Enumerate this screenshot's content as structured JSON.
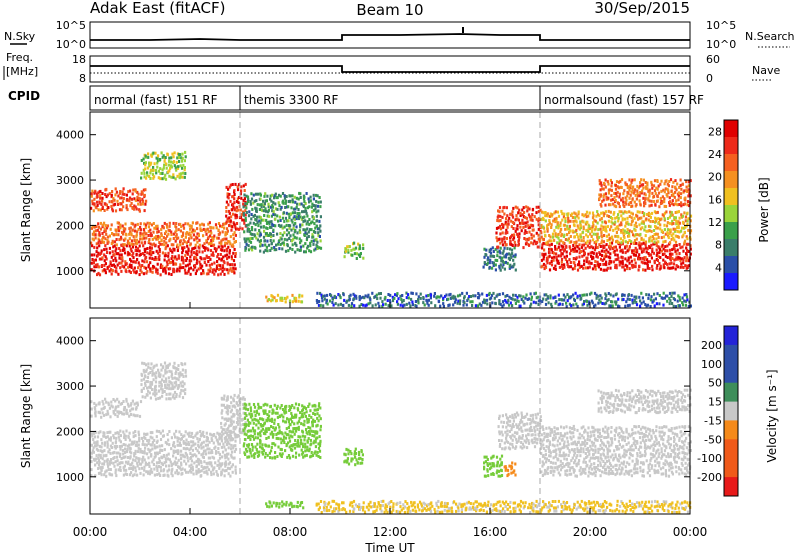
{
  "header": {
    "station": "Adak East (fitACF)",
    "beam": "Beam 10",
    "date": "30/Sep/2015"
  },
  "noise_panel": {
    "left_label": "N.Sky",
    "right_label": "N.Search",
    "left_ticks": [
      "10^5",
      "10^0"
    ],
    "right_ticks": [
      "10^5",
      "10^0"
    ]
  },
  "freq_panel": {
    "left_label_line1": "Freq.",
    "left_label_line2": "[MHz]",
    "right_label": "Nave",
    "left_ticks": [
      "18",
      "8"
    ],
    "right_ticks": [
      "60",
      "0"
    ]
  },
  "cpid": {
    "label": "CPID",
    "segments": [
      {
        "name": "normal (fast) 151 RF",
        "start_h": 0,
        "end_h": 6
      },
      {
        "name": "themis 3300 RF",
        "start_h": 6,
        "end_h": 18
      },
      {
        "name": "normalsound (fast) 157 RF",
        "start_h": 18,
        "end_h": 24
      }
    ]
  },
  "colors": {
    "power": [
      "#1a1aff",
      "#2a4fa8",
      "#3a7d6a",
      "#3aa04a",
      "#9ad43a",
      "#f0c020",
      "#f59020",
      "#f56020",
      "#ee2a1a",
      "#e00000"
    ],
    "velocity_pos": [
      "#2424d8",
      "#2e4fa8",
      "#3e8e5a",
      "#76cc3a"
    ],
    "velocity_neutral": "#c8c8c8",
    "velocity_neg": [
      "#f0c020",
      "#f58a1a",
      "#f05a1a",
      "#e81a1a"
    ]
  },
  "chart_data": [
    {
      "type": "heatmap",
      "name": "power",
      "ylabel": "Slant Range [km]",
      "xlabel": "Time UT",
      "xlim": [
        0,
        24
      ],
      "ylim": [
        180,
        4500
      ],
      "x_ticks": [
        "00:00",
        "04:00",
        "08:00",
        "12:00",
        "16:00",
        "20:00",
        "00:00"
      ],
      "y_ticks": [
        1000,
        2000,
        3000,
        4000
      ],
      "colorbar": {
        "label": "Power [dB]",
        "ticks": [
          4,
          8,
          12,
          16,
          20,
          24,
          28
        ],
        "range": [
          0,
          30
        ]
      },
      "regions": [
        {
          "t0": 0.0,
          "t1": 5.8,
          "r0": 900,
          "r1": 1550,
          "level": 27
        },
        {
          "t0": 0.0,
          "t1": 5.8,
          "r0": 1550,
          "r1": 2050,
          "level": 22
        },
        {
          "t0": 0.0,
          "t1": 2.2,
          "r0": 2300,
          "r1": 2800,
          "level": 24
        },
        {
          "t0": 2.0,
          "t1": 3.8,
          "r0": 3000,
          "r1": 3600,
          "level": 14
        },
        {
          "t0": 5.4,
          "t1": 6.2,
          "r0": 1900,
          "r1": 2900,
          "level": 26
        },
        {
          "t0": 6.1,
          "t1": 9.2,
          "r0": 1400,
          "r1": 2700,
          "level": 9
        },
        {
          "t0": 10.1,
          "t1": 10.9,
          "r0": 1250,
          "r1": 1600,
          "level": 13
        },
        {
          "t0": 15.7,
          "t1": 17.0,
          "r0": 1000,
          "r1": 1500,
          "level": 7
        },
        {
          "t0": 16.2,
          "t1": 18.0,
          "r0": 1500,
          "r1": 2400,
          "level": 25
        },
        {
          "t0": 18.0,
          "t1": 24.0,
          "r0": 1000,
          "r1": 1600,
          "level": 27
        },
        {
          "t0": 18.0,
          "t1": 24.0,
          "r0": 1600,
          "r1": 2300,
          "level": 18
        },
        {
          "t0": 20.3,
          "t1": 24.0,
          "r0": 2400,
          "r1": 3000,
          "level": 22
        },
        {
          "t0": 7.0,
          "t1": 8.5,
          "r0": 300,
          "r1": 450,
          "level": 16
        },
        {
          "t0": 9.0,
          "t1": 24.0,
          "r0": 200,
          "r1": 500,
          "level": 6
        }
      ]
    },
    {
      "type": "heatmap",
      "name": "velocity",
      "ylabel": "Slant Range [km]",
      "xlabel": "Time UT",
      "xlim": [
        0,
        24
      ],
      "ylim": [
        180,
        4500
      ],
      "x_ticks": [
        "00:00",
        "04:00",
        "08:00",
        "12:00",
        "16:00",
        "20:00",
        "00:00"
      ],
      "y_ticks": [
        1000,
        2000,
        3000,
        4000
      ],
      "colorbar": {
        "label": "Velocity [m s⁻¹]",
        "ticks": [
          200,
          100,
          50,
          15,
          -15,
          -50,
          -100,
          -200
        ],
        "range": [
          -250,
          250
        ]
      },
      "regions": [
        {
          "t0": 0.0,
          "t1": 5.8,
          "r0": 1000,
          "r1": 2000,
          "level": 0
        },
        {
          "t0": 0.0,
          "t1": 2.0,
          "r0": 2300,
          "r1": 2700,
          "level": 0
        },
        {
          "t0": 2.0,
          "t1": 3.8,
          "r0": 2700,
          "r1": 3500,
          "level": 0
        },
        {
          "t0": 5.2,
          "t1": 6.2,
          "r0": 1800,
          "r1": 2800,
          "level": 0
        },
        {
          "t0": 6.1,
          "t1": 9.2,
          "r0": 1400,
          "r1": 2600,
          "level": 30
        },
        {
          "t0": 10.1,
          "t1": 10.9,
          "r0": 1250,
          "r1": 1600,
          "level": 30
        },
        {
          "t0": 15.7,
          "t1": 16.5,
          "r0": 1000,
          "r1": 1450,
          "level": 40
        },
        {
          "t0": 16.5,
          "t1": 17.0,
          "r0": 1000,
          "r1": 1300,
          "level": -80
        },
        {
          "t0": 16.3,
          "t1": 18.0,
          "r0": 1600,
          "r1": 2400,
          "level": 0
        },
        {
          "t0": 18.0,
          "t1": 24.0,
          "r0": 1000,
          "r1": 2100,
          "level": 0
        },
        {
          "t0": 20.3,
          "t1": 24.0,
          "r0": 2400,
          "r1": 2900,
          "level": 0
        },
        {
          "t0": 7.0,
          "t1": 8.5,
          "r0": 300,
          "r1": 450,
          "level": 30
        },
        {
          "t0": 9.0,
          "t1": 24.0,
          "r0": 200,
          "r1": 450,
          "level": -20
        }
      ]
    }
  ]
}
